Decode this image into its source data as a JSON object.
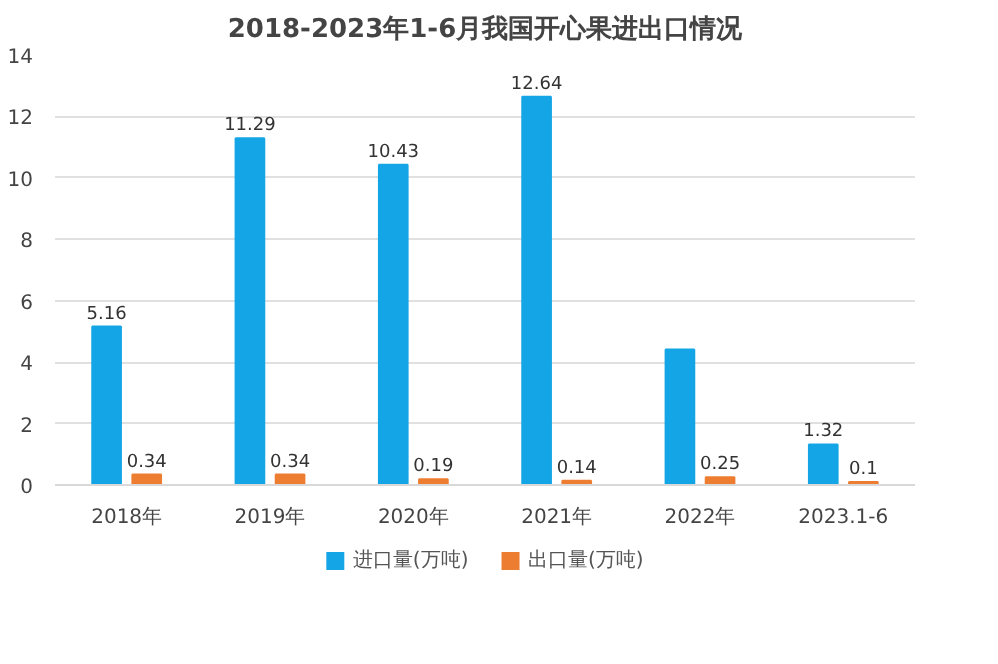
{
  "chart_data": {
    "type": "bar",
    "title": "2018-2023年1-6月我国开心果进出口情况",
    "categories": [
      "2018年",
      "2019年",
      "2020年",
      "2021年",
      "2022年",
      "2023.1-6"
    ],
    "series": [
      {
        "name": "进口量(万吨)",
        "color": "#14a5e6",
        "values": [
          5.16,
          11.29,
          10.43,
          12.64,
          4.41,
          1.32
        ],
        "value_labels": [
          "5.16",
          "11.29",
          "10.43",
          "12.64",
          null,
          "1.32"
        ]
      },
      {
        "name": "出口量(万吨)",
        "color": "#ed7d31",
        "values": [
          0.34,
          0.34,
          0.19,
          0.14,
          0.25,
          0.1
        ],
        "value_labels": [
          "0.34",
          "0.34",
          "0.19",
          "0.14",
          "0.25",
          "0.1"
        ]
      }
    ],
    "ylim": [
      0,
      14
    ],
    "yticks": [
      0,
      2,
      4,
      6,
      8,
      10,
      12,
      14
    ],
    "grid": "y",
    "legend": "bottom"
  }
}
